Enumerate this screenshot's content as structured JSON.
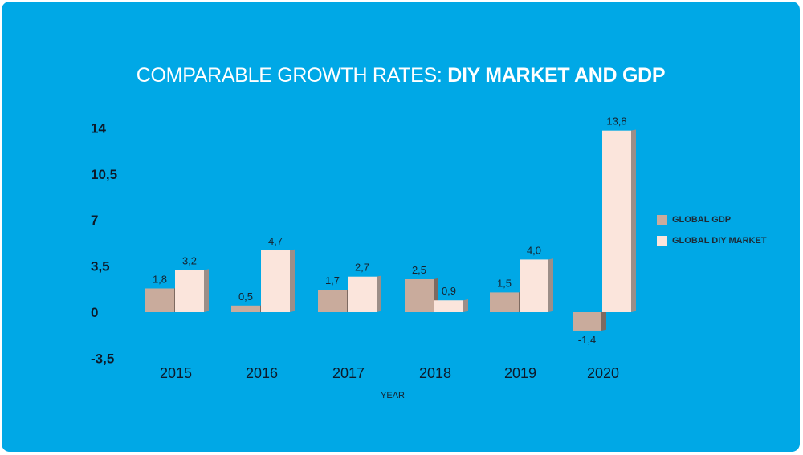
{
  "chart_data": {
    "type": "bar",
    "title_light": "COMPARABLE GROWTH RATES: ",
    "title_bold": "DIY MARKET AND GDP",
    "xlabel": "YEAR",
    "ylabel": "",
    "categories": [
      "2015",
      "2016",
      "2017",
      "2018",
      "2019",
      "2020"
    ],
    "series": [
      {
        "name": "GLOBAL GDP",
        "values": [
          1.8,
          0.5,
          1.7,
          2.5,
          1.5,
          -1.4
        ],
        "labels": [
          "1,8",
          "0,5",
          "1,7",
          "2,5",
          "1,5",
          "-1,4"
        ],
        "color": "#c9ab9c"
      },
      {
        "name": "GLOBAL DIY MARKET",
        "values": [
          3.2,
          4.7,
          2.7,
          0.9,
          4.0,
          13.8
        ],
        "labels": [
          "3,2",
          "4,7",
          "2,7",
          "0,9",
          "4,0",
          "13,8"
        ],
        "color": "#fbe5dc"
      }
    ],
    "y_ticks": [
      14,
      10.5,
      7,
      3.5,
      0,
      -3.5
    ],
    "y_tick_labels": [
      "14",
      "10,5",
      "7",
      "3,5",
      "0",
      "-3,5"
    ],
    "ylim": [
      -3.5,
      14
    ],
    "grid": false,
    "legend_position": "right"
  }
}
